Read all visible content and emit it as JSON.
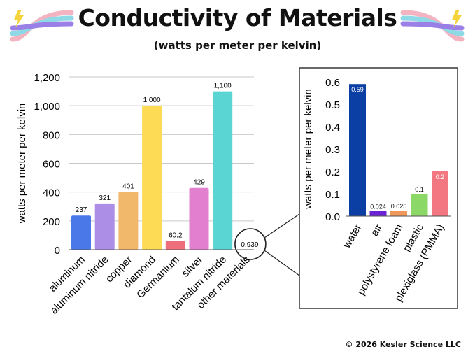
{
  "title": "Conductivity of Materials",
  "subtitle": "(watts per meter per kelvin)",
  "copyright": "© 2026 Kesler Science LLC",
  "colors": {
    "grid": "#c9c9c9",
    "axis": "#222222",
    "inset_border": "#444444",
    "decoration": [
      "#f4b3c0",
      "#8ed9e6",
      "#9a7fe6",
      "#f5d33d"
    ]
  },
  "chart_data": [
    {
      "type": "bar",
      "title": "",
      "xlabel": "",
      "ylabel": "watts per meter per kelvin",
      "ylim": [
        0,
        1200
      ],
      "yticks": [
        "0",
        "200",
        "400",
        "600",
        "800",
        "1,000",
        "1,200"
      ],
      "categories": [
        "aluminum",
        "aluminum nitride",
        "copper",
        "diamond",
        "Germanium",
        "silver",
        "tantalum nitride",
        "other materials"
      ],
      "values": [
        237,
        321,
        401,
        1000,
        60.2,
        429,
        1100,
        0.939
      ],
      "labels": [
        "237",
        "321",
        "401",
        "1,000",
        "60.2",
        "429",
        "1,100",
        "0.939"
      ],
      "colors": [
        "#4a78e8",
        "#ad8ee6",
        "#f1b86b",
        "#fedb54",
        "#ee6f7b",
        "#e27fce",
        "#5bd5d3",
        "#ffffff"
      ],
      "grid": true,
      "annotation": "other materials circled and expanded in inset chart"
    },
    {
      "type": "bar",
      "title": "",
      "xlabel": "",
      "ylabel": "watts per meter per kelvin",
      "ylim": [
        0,
        0.6
      ],
      "yticks": [
        "0.0",
        "0.1",
        "0.2",
        "0.3",
        "0.4",
        "0.5",
        "0.6"
      ],
      "categories": [
        "water",
        "air",
        "polystyrene foam",
        "plastic",
        "plexiglass (PMMA)"
      ],
      "values": [
        0.59,
        0.024,
        0.025,
        0.1,
        0.2
      ],
      "labels": [
        "0.59",
        "0.024",
        "0.025",
        "0.1",
        "0.2"
      ],
      "colors": [
        "#0b3fa4",
        "#6a22d4",
        "#f09859",
        "#8bd866",
        "#f27781"
      ],
      "grid": false
    }
  ]
}
